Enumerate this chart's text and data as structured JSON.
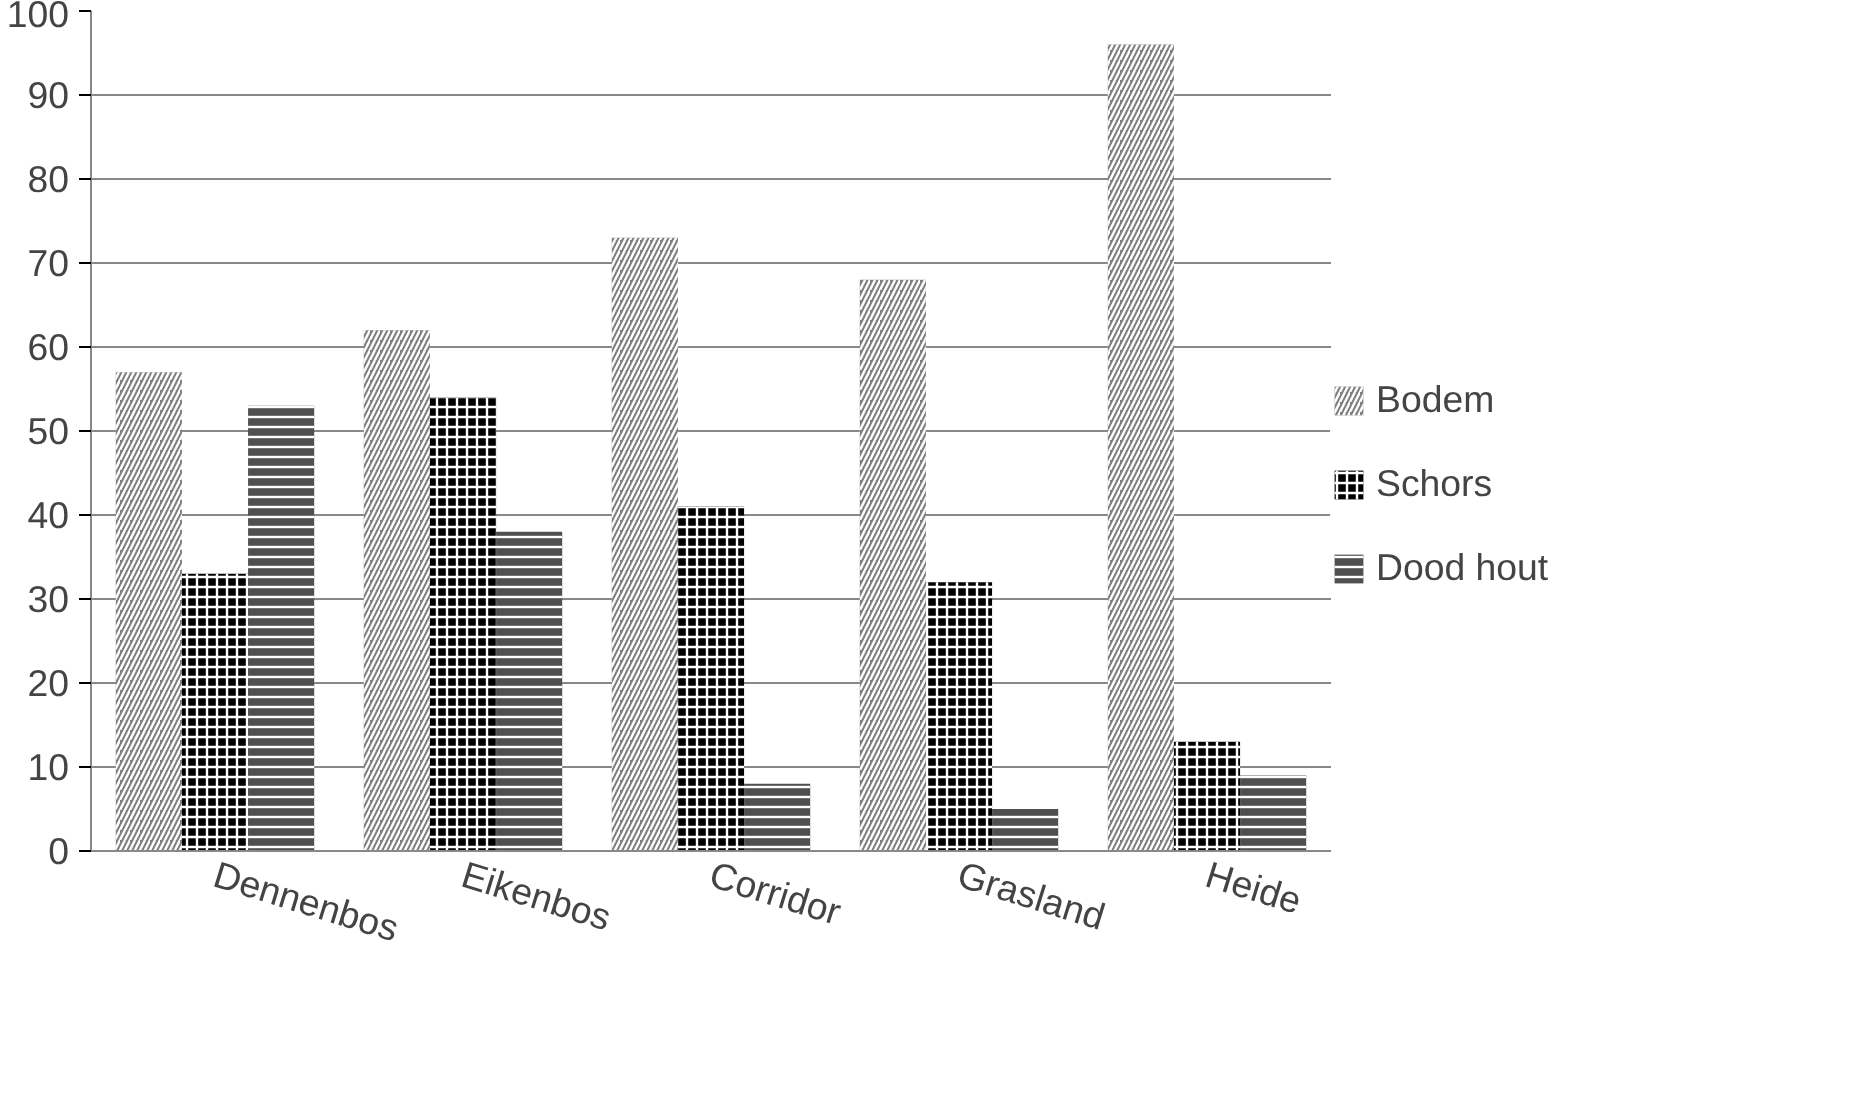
{
  "chart_data": {
    "type": "bar",
    "categories": [
      "Dennenbos",
      "Eikenbos",
      "Corridor",
      "Grasland",
      "Heide"
    ],
    "series": [
      {
        "name": "Bodem",
        "color": "#808080",
        "values": [
          57,
          62,
          73,
          68,
          96
        ]
      },
      {
        "name": "Schors",
        "color": "#000000",
        "values": [
          33,
          54,
          41,
          32,
          13
        ]
      },
      {
        "name": "Dood hout",
        "color": "#505050",
        "values": [
          53,
          38,
          8,
          5,
          9
        ]
      }
    ],
    "ylim": [
      0,
      100
    ],
    "yticks": [
      0,
      10,
      20,
      30,
      40,
      50,
      60,
      70,
      80,
      90,
      100
    ],
    "grid": "y",
    "legend": "right"
  }
}
